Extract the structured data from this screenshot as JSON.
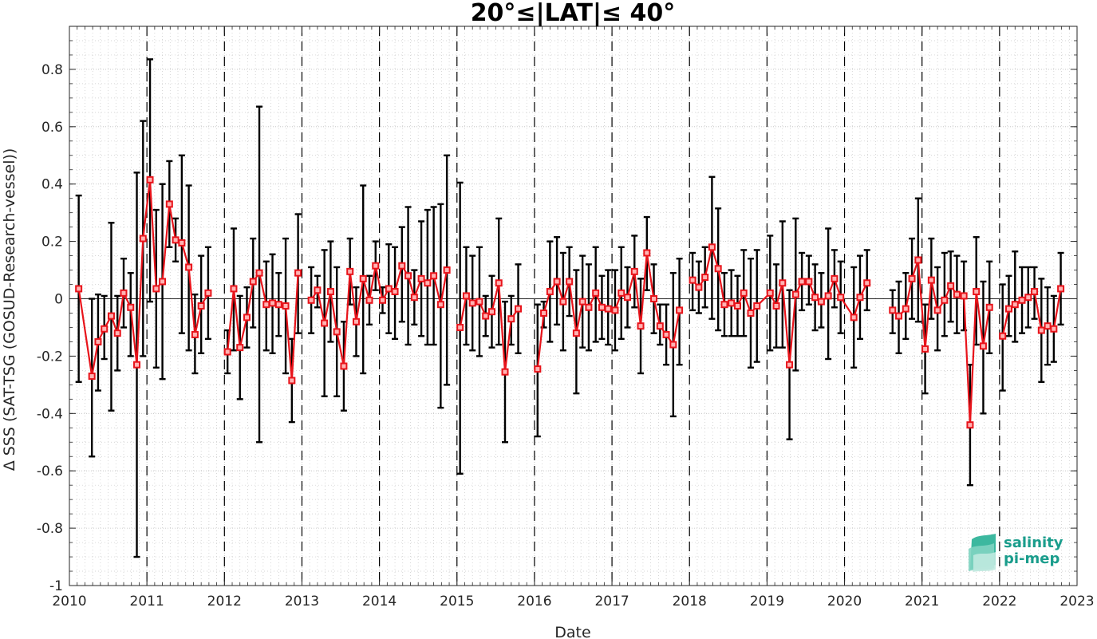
{
  "chart_data": {
    "type": "line",
    "title": "20°≤|LAT|≤ 40°",
    "xlabel": "Date",
    "ylabel": "Δ SSS (SAT-TSG (GOSUD-Research-vessel))",
    "xlim": [
      2010,
      2023
    ],
    "ylim": [
      -1,
      0.95
    ],
    "x_ticks": [
      "2010",
      "2011",
      "2012",
      "2013",
      "2014",
      "2015",
      "2016",
      "2017",
      "2018",
      "2019",
      "2020",
      "2021",
      "2022",
      "2023"
    ],
    "y_ticks": [
      "-1",
      "-0.8",
      "-0.6",
      "-0.4",
      "-0.2",
      "0",
      "0.2",
      "0.4",
      "0.6",
      "0.8"
    ],
    "year_boundaries": [
      2011,
      2012,
      2013,
      2014,
      2015,
      2016,
      2017,
      2018,
      2019,
      2020,
      2021,
      2022
    ],
    "grid": true,
    "colors": {
      "series": "#e8141b",
      "error_bars": "#000000",
      "zero_line": "#262626"
    },
    "series": [
      {
        "segments": [
          {
            "points": [
              [
                2010.12,
                0.035,
                -0.29,
                0.36
              ],
              [
                2010.29,
                -0.27,
                -0.55,
                0
              ],
              [
                2010.37,
                -0.15,
                -0.32,
                0.015
              ],
              [
                2010.45,
                -0.105,
                -0.21,
                0.01
              ],
              [
                2010.54,
                -0.06,
                -0.39,
                0.265
              ],
              [
                2010.62,
                -0.12,
                -0.25,
                0.01
              ],
              [
                2010.7,
                0.02,
                -0.1,
                0.14
              ],
              [
                2010.79,
                -0.03,
                -0.2,
                0.09
              ],
              [
                2010.87,
                -0.23,
                -0.9,
                0.44
              ],
              [
                2010.95,
                0.21,
                -0.2,
                0.62
              ],
              [
                2011.04,
                0.415,
                -0.01,
                0.835
              ],
              [
                2011.12,
                0.035,
                -0.24,
                0.31
              ],
              [
                2011.2,
                0.06,
                -0.28,
                0.4
              ],
              [
                2011.29,
                0.33,
                0.18,
                0.48
              ],
              [
                2011.37,
                0.205,
                0.13,
                0.28
              ],
              [
                2011.45,
                0.195,
                -0.12,
                0.5
              ],
              [
                2011.54,
                0.11,
                -0.18,
                0.395
              ],
              [
                2011.62,
                -0.125,
                -0.26,
                0.015
              ],
              [
                2011.7,
                -0.025,
                -0.19,
                0.15
              ],
              [
                2011.79,
                0.02,
                -0.14,
                0.18
              ]
            ]
          },
          {
            "points": [
              [
                2012.04,
                -0.185,
                -0.26,
                -0.11
              ],
              [
                2012.12,
                0.035,
                -0.18,
                0.245
              ],
              [
                2012.2,
                -0.17,
                -0.35,
                0.01
              ],
              [
                2012.29,
                -0.065,
                -0.17,
                0.04
              ],
              [
                2012.37,
                0.06,
                -0.1,
                0.21
              ],
              [
                2012.45,
                0.09,
                -0.5,
                0.67
              ],
              [
                2012.54,
                -0.02,
                -0.18,
                0.13
              ],
              [
                2012.62,
                -0.015,
                -0.19,
                0.155
              ],
              [
                2012.7,
                -0.02,
                -0.13,
                0.09
              ],
              [
                2012.79,
                -0.025,
                -0.26,
                0.21
              ],
              [
                2012.87,
                -0.285,
                -0.43,
                -0.14
              ],
              [
                2012.95,
                0.09,
                -0.12,
                0.295
              ]
            ]
          },
          {
            "points": [
              [
                2013.12,
                -0.005,
                -0.12,
                0.11
              ],
              [
                2013.2,
                0.03,
                -0.03,
                0.08
              ],
              [
                2013.29,
                -0.085,
                -0.34,
                0.17
              ],
              [
                2013.37,
                0.025,
                -0.15,
                0.2
              ],
              [
                2013.45,
                -0.115,
                -0.34,
                0.11
              ],
              [
                2013.54,
                -0.235,
                -0.39,
                -0.08
              ],
              [
                2013.62,
                0.095,
                -0.02,
                0.21
              ],
              [
                2013.7,
                -0.08,
                -0.2,
                0.04
              ],
              [
                2013.79,
                0.07,
                -0.26,
                0.395
              ],
              [
                2013.87,
                -0.005,
                -0.09,
                0.08
              ],
              [
                2013.95,
                0.115,
                0.03,
                0.2
              ],
              [
                2014.04,
                -0.005,
                -0.05,
                0.04
              ],
              [
                2014.12,
                0.035,
                -0.12,
                0.19
              ],
              [
                2014.2,
                0.025,
                -0.14,
                0.18
              ],
              [
                2014.29,
                0.115,
                -0.08,
                0.25
              ],
              [
                2014.37,
                0.08,
                -0.16,
                0.32
              ],
              [
                2014.45,
                0.005,
                -0.09,
                0.1
              ],
              [
                2014.54,
                0.07,
                -0.13,
                0.27
              ],
              [
                2014.62,
                0.055,
                -0.16,
                0.31
              ],
              [
                2014.7,
                0.08,
                -0.16,
                0.32
              ],
              [
                2014.79,
                -0.02,
                -0.38,
                0.33
              ],
              [
                2014.87,
                0.1,
                -0.3,
                0.5
              ]
            ]
          },
          {
            "points": [
              [
                2015.04,
                -0.1,
                -0.61,
                0.405
              ],
              [
                2015.12,
                0.01,
                -0.16,
                0.18
              ],
              [
                2015.2,
                -0.015,
                -0.18,
                0.15
              ],
              [
                2015.29,
                -0.01,
                -0.2,
                0.18
              ],
              [
                2015.37,
                -0.06,
                -0.13,
                0.01
              ],
              [
                2015.45,
                -0.045,
                -0.17,
                0.08
              ],
              [
                2015.54,
                0.055,
                -0.16,
                0.28
              ],
              [
                2015.62,
                -0.255,
                -0.5,
                -0.01
              ],
              [
                2015.7,
                -0.07,
                -0.16,
                0.01
              ],
              [
                2015.79,
                -0.035,
                -0.19,
                0.12
              ]
            ]
          },
          {
            "points": [
              [
                2016.04,
                -0.245,
                -0.48,
                -0.02
              ],
              [
                2016.12,
                -0.05,
                -0.1,
                -0.01
              ],
              [
                2016.2,
                0.025,
                -0.15,
                0.2
              ],
              [
                2016.29,
                0.06,
                -0.09,
                0.215
              ],
              [
                2016.37,
                -0.01,
                -0.18,
                0.16
              ],
              [
                2016.45,
                0.06,
                -0.06,
                0.18
              ],
              [
                2016.54,
                -0.12,
                -0.33,
                0.1
              ],
              [
                2016.62,
                -0.01,
                -0.17,
                0.15
              ],
              [
                2016.7,
                -0.03,
                -0.18,
                0.12
              ],
              [
                2016.79,
                0.02,
                -0.15,
                0.18
              ],
              [
                2016.87,
                -0.03,
                -0.14,
                0.08
              ],
              [
                2016.95,
                -0.035,
                -0.16,
                0.1
              ],
              [
                2017.04,
                -0.04,
                -0.18,
                0.1
              ],
              [
                2017.12,
                0.02,
                -0.14,
                0.18
              ],
              [
                2017.2,
                0.005,
                -0.1,
                0.11
              ],
              [
                2017.29,
                0.095,
                -0.03,
                0.22
              ],
              [
                2017.37,
                -0.095,
                -0.26,
                0.07
              ],
              [
                2017.45,
                0.16,
                0.03,
                0.285
              ],
              [
                2017.54,
                0.0,
                -0.12,
                0.12
              ],
              [
                2017.62,
                -0.095,
                -0.16,
                -0.02
              ],
              [
                2017.7,
                -0.125,
                -0.23,
                -0.02
              ],
              [
                2017.79,
                -0.16,
                -0.41,
                0.09
              ],
              [
                2017.87,
                -0.04,
                -0.23,
                0.14
              ]
            ]
          },
          {
            "points": [
              [
                2018.04,
                0.065,
                -0.04,
                0.16
              ],
              [
                2018.12,
                0.04,
                -0.05,
                0.13
              ],
              [
                2018.2,
                0.075,
                -0.03,
                0.18
              ],
              [
                2018.29,
                0.18,
                -0.07,
                0.425
              ],
              [
                2018.37,
                0.105,
                -0.11,
                0.315
              ],
              [
                2018.45,
                -0.02,
                -0.13,
                0.09
              ],
              [
                2018.54,
                -0.015,
                -0.13,
                0.1
              ],
              [
                2018.62,
                -0.025,
                -0.13,
                0.08
              ],
              [
                2018.7,
                0.02,
                -0.13,
                0.17
              ],
              [
                2018.79,
                -0.05,
                -0.24,
                0.14
              ],
              [
                2018.87,
                -0.025,
                -0.22,
                0.17
              ],
              [
                2019.04,
                0.02,
                -0.18,
                0.22
              ],
              [
                2019.12,
                -0.025,
                -0.17,
                0.12
              ],
              [
                2019.2,
                0.055,
                -0.17,
                0.27
              ],
              [
                2019.29,
                -0.23,
                -0.49,
                0.03
              ],
              [
                2019.37,
                0.015,
                -0.25,
                0.28
              ],
              [
                2019.45,
                0.06,
                -0.04,
                0.16
              ],
              [
                2019.54,
                0.06,
                -0.02,
                0.15
              ],
              [
                2019.62,
                0.005,
                -0.11,
                0.12
              ],
              [
                2019.7,
                -0.01,
                -0.1,
                0.09
              ],
              [
                2019.79,
                0.01,
                -0.21,
                0.245
              ],
              [
                2019.87,
                0.07,
                -0.03,
                0.17
              ],
              [
                2019.95,
                0.005,
                -0.12,
                0.13
              ],
              [
                2020.12,
                -0.065,
                -0.24,
                0.11
              ],
              [
                2020.2,
                0.005,
                -0.14,
                0.15
              ],
              [
                2020.29,
                0.055,
                -0.04,
                0.17
              ]
            ]
          },
          {
            "points": [
              [
                2020.62,
                -0.04,
                -0.12,
                0.03
              ],
              [
                2020.7,
                -0.06,
                -0.19,
                0.06
              ],
              [
                2020.79,
                -0.035,
                -0.14,
                0.09
              ],
              [
                2020.87,
                0.07,
                -0.07,
                0.21
              ],
              [
                2020.95,
                0.135,
                -0.08,
                0.35
              ],
              [
                2021.04,
                -0.175,
                -0.33,
                -0.02
              ],
              [
                2021.12,
                0.065,
                -0.07,
                0.21
              ],
              [
                2021.2,
                -0.04,
                -0.18,
                0.11
              ],
              [
                2021.29,
                -0.005,
                -0.13,
                0.16
              ],
              [
                2021.37,
                0.045,
                -0.08,
                0.165
              ],
              [
                2021.45,
                0.015,
                -0.12,
                0.15
              ],
              [
                2021.54,
                0.01,
                -0.11,
                0.13
              ],
              [
                2021.62,
                -0.44,
                -0.65,
                -0.23
              ],
              [
                2021.7,
                0.025,
                -0.16,
                0.215
              ],
              [
                2021.79,
                -0.165,
                -0.4,
                0.06
              ],
              [
                2021.87,
                -0.03,
                -0.19,
                0.13
              ]
            ]
          },
          {
            "points": [
              [
                2022.04,
                -0.13,
                -0.32,
                0.05
              ],
              [
                2022.12,
                -0.035,
                -0.13,
                0.08
              ],
              [
                2022.2,
                -0.02,
                -0.15,
                0.165
              ],
              [
                2022.29,
                -0.005,
                -0.12,
                0.11
              ],
              [
                2022.37,
                0.005,
                -0.1,
                0.11
              ],
              [
                2022.45,
                0.025,
                -0.07,
                0.11
              ],
              [
                2022.54,
                -0.11,
                -0.29,
                0.07
              ],
              [
                2022.62,
                -0.095,
                -0.23,
                0.04
              ],
              [
                2022.7,
                -0.105,
                -0.22,
                0.01
              ],
              [
                2022.79,
                0.035,
                -0.09,
                0.16
              ]
            ]
          }
        ]
      }
    ]
  }
}
